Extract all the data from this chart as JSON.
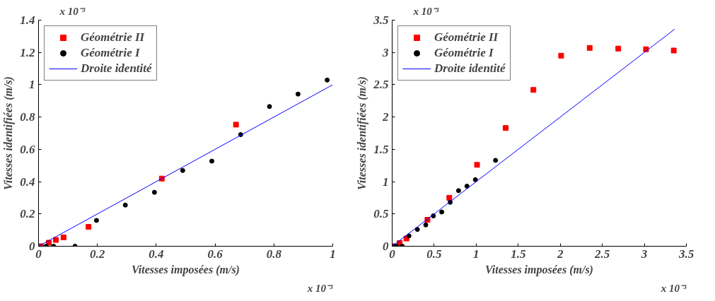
{
  "chart_data": [
    {
      "type": "scatter",
      "xlabel": "Vitesses imposées (m/s)",
      "ylabel": "Vitesses identifiées (m/s)",
      "annotations": [
        "x 10⁻³",
        "x 10⁻³"
      ],
      "xlim": [
        0,
        1
      ],
      "ylim": [
        0,
        1.4
      ],
      "xticks": [
        0,
        0.2,
        0.4,
        0.6,
        0.8,
        1
      ],
      "yticks": [
        0,
        0.2,
        0.4,
        0.6,
        0.8,
        1,
        1.2,
        1.4
      ],
      "grid": false,
      "legend": "top left",
      "series": [
        {
          "name": "Géométrie II",
          "color": "#ff0000",
          "marker": "square",
          "x": [
            0.008,
            0.035,
            0.059,
            0.085,
            0.17,
            0.419,
            0.671
          ],
          "values": [
            0,
            0.022,
            0.039,
            0.055,
            0.12,
            0.419,
            0.753
          ]
        },
        {
          "name": "Géométrie I",
          "color": "#000000",
          "marker": "circle",
          "x": [
            0.026,
            0.051,
            0.124,
            0.197,
            0.295,
            0.394,
            0.49,
            0.589,
            0.687,
            0.785,
            0.882,
            0.981
          ],
          "values": [
            0,
            0,
            0,
            0.16,
            0.255,
            0.334,
            0.469,
            0.527,
            0.691,
            0.865,
            0.942,
            1.029
          ]
        },
        {
          "name": "Droite identité",
          "type": "line",
          "color": "#0000ff",
          "x": [
            0,
            1
          ],
          "values": [
            0,
            1
          ]
        }
      ]
    },
    {
      "type": "scatter",
      "xlabel": "Vitesses imposées (m/s)",
      "ylabel": "Vitesses identifiées (m/s)",
      "annotations": [
        "x 10⁻³",
        "x 10⁻³"
      ],
      "xlim": [
        0,
        3.5
      ],
      "ylim": [
        0,
        3.5
      ],
      "xticks": [
        0,
        0.5,
        1,
        1.5,
        2,
        2.5,
        3,
        3.5
      ],
      "yticks": [
        0,
        0.5,
        1,
        1.5,
        2,
        2.5,
        3,
        3.5
      ],
      "grid": false,
      "legend": "top left",
      "series": [
        {
          "name": "Géométrie II",
          "color": "#ff0000",
          "marker": "square",
          "x": [
            0.008,
            0.05,
            0.09,
            0.17,
            0.42,
            0.68,
            1.01,
            1.35,
            1.68,
            2.01,
            2.35,
            2.69,
            3.02,
            3.35
          ],
          "values": [
            0,
            null,
            0.05,
            0.12,
            0.41,
            0.75,
            1.26,
            1.83,
            2.42,
            2.95,
            3.07,
            3.06,
            3.05,
            3.03
          ]
        },
        {
          "name": "Géométrie I",
          "color": "#000000",
          "marker": "circle",
          "x": [
            0.03,
            0.05,
            0.12,
            0.2,
            0.3,
            0.4,
            0.49,
            0.59,
            0.69,
            0.79,
            0.89,
            0.99,
            1.23
          ],
          "values": [
            0,
            0,
            0,
            0.16,
            0.26,
            0.33,
            0.47,
            0.53,
            0.68,
            0.86,
            0.93,
            1.03,
            1.33
          ]
        },
        {
          "name": "Droite identité",
          "type": "line",
          "color": "#0000ff",
          "x": [
            0,
            3.36
          ],
          "values": [
            0,
            3.36
          ]
        }
      ]
    }
  ]
}
